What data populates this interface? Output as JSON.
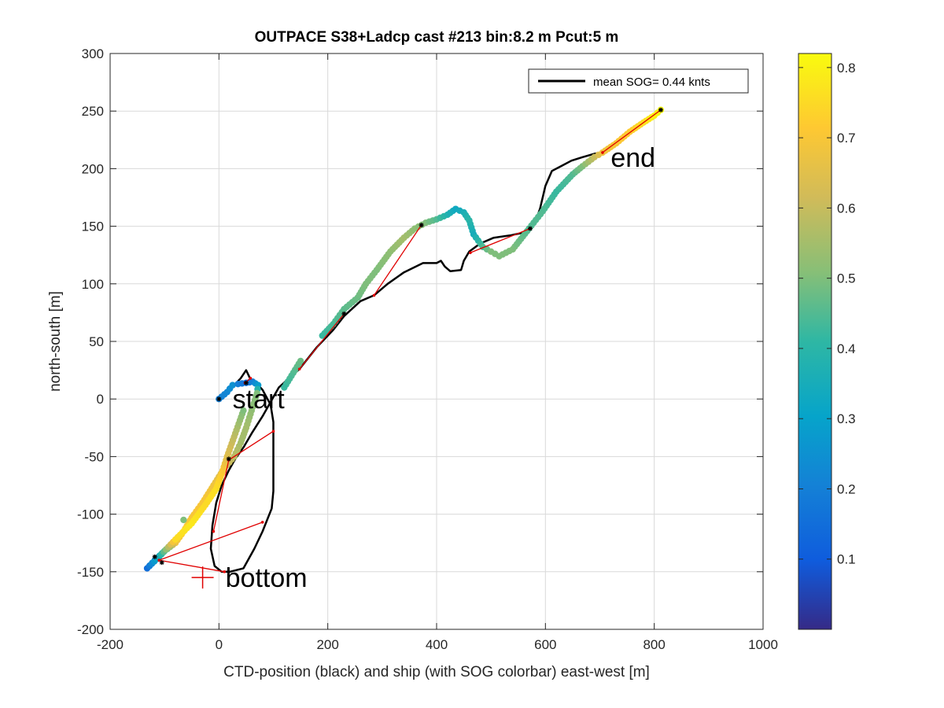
{
  "chart_data": {
    "type": "scatter",
    "title": "OUTPACE S38+Ladcp cast #213 bin:8.2 m  Pcut:5 m",
    "xlabel": "CTD-position (black) and ship (with SOG colorbar) east-west [m]",
    "ylabel": "north-south [m]",
    "xlim": [
      -200,
      1000
    ],
    "ylim": [
      -200,
      300
    ],
    "xticks": [
      -200,
      0,
      200,
      400,
      600,
      800,
      1000
    ],
    "yticks": [
      -200,
      -150,
      -100,
      -50,
      0,
      50,
      100,
      150,
      200,
      250,
      300
    ],
    "grid": true,
    "legend": {
      "label": "mean SOG=  0.44 knts",
      "location": "top-right"
    },
    "colorbar": {
      "range": [
        0.0,
        0.82
      ],
      "ticks": [
        "0.1",
        "0.2",
        "0.3",
        "0.4",
        "0.5",
        "0.6",
        "0.7",
        "0.8"
      ],
      "colormap": "parula"
    },
    "annotations": [
      {
        "text": "start",
        "x": 25,
        "y": 0
      },
      {
        "text": "end",
        "x": 720,
        "y": 210
      },
      {
        "text": "bottom",
        "x": 12,
        "y": -155
      }
    ],
    "ctd_track": [
      [
        0,
        0
      ],
      [
        20,
        8
      ],
      [
        40,
        18
      ],
      [
        50,
        25
      ],
      [
        55,
        20
      ],
      [
        60,
        15
      ],
      [
        72,
        12
      ],
      [
        80,
        8
      ],
      [
        95,
        -5
      ],
      [
        100,
        -20
      ],
      [
        100,
        -50
      ],
      [
        100,
        -80
      ],
      [
        97,
        -95
      ],
      [
        80,
        -115
      ],
      [
        65,
        -130
      ],
      [
        45,
        -147
      ],
      [
        20,
        -150
      ],
      [
        5,
        -150
      ],
      [
        -8,
        -145
      ],
      [
        -15,
        -130
      ],
      [
        -12,
        -110
      ],
      [
        -5,
        -90
      ],
      [
        5,
        -75
      ],
      [
        18,
        -62
      ],
      [
        30,
        -52
      ],
      [
        45,
        -42
      ],
      [
        60,
        -30
      ],
      [
        80,
        -15
      ],
      [
        110,
        10
      ],
      [
        148,
        26
      ],
      [
        180,
        45
      ],
      [
        210,
        60
      ],
      [
        230,
        72
      ],
      [
        260,
        85
      ],
      [
        285,
        90
      ],
      [
        310,
        100
      ],
      [
        340,
        110
      ],
      [
        375,
        118
      ],
      [
        400,
        118
      ],
      [
        408,
        120
      ],
      [
        415,
        115
      ],
      [
        425,
        111
      ],
      [
        445,
        112
      ],
      [
        450,
        120
      ],
      [
        460,
        128
      ],
      [
        480,
        135
      ],
      [
        505,
        140
      ],
      [
        535,
        142
      ],
      [
        565,
        145
      ],
      [
        578,
        150
      ],
      [
        590,
        165
      ],
      [
        600,
        185
      ],
      [
        612,
        198
      ],
      [
        628,
        202
      ],
      [
        648,
        207
      ],
      [
        668,
        210
      ],
      [
        690,
        213
      ],
      [
        705,
        214
      ]
    ],
    "ship_track": [
      {
        "x": 0,
        "y": 0,
        "v": 0.2
      },
      {
        "x": 15,
        "y": 6,
        "v": 0.22
      },
      {
        "x": 25,
        "y": 12,
        "v": 0.25
      },
      {
        "x": 35,
        "y": 13,
        "v": 0.2
      },
      {
        "x": 50,
        "y": 14,
        "v": 0.15
      },
      {
        "x": 62,
        "y": 15,
        "v": 0.2
      },
      {
        "x": 72,
        "y": 12,
        "v": 0.28
      },
      {
        "x": 70,
        "y": 5,
        "v": 0.5
      },
      {
        "x": 60,
        "y": -10,
        "v": 0.52
      },
      {
        "x": 50,
        "y": -25,
        "v": 0.55
      },
      {
        "x": 40,
        "y": -38,
        "v": 0.55
      },
      {
        "x": 28,
        "y": -50,
        "v": 0.58
      },
      {
        "x": 10,
        "y": -60,
        "v": 0.62
      },
      {
        "x": -10,
        "y": -75,
        "v": 0.68
      },
      {
        "x": -30,
        "y": -90,
        "v": 0.7
      },
      {
        "x": -50,
        "y": -103,
        "v": 0.7
      },
      {
        "x": -65,
        "y": -115,
        "v": 0.72
      },
      {
        "x": -80,
        "y": -125,
        "v": 0.68
      },
      {
        "x": -100,
        "y": -132,
        "v": 0.4
      },
      {
        "x": -118,
        "y": -140,
        "v": 0.25
      },
      {
        "x": -132,
        "y": -147,
        "v": 0.15
      },
      {
        "x": -110,
        "y": -137,
        "v": 0.35
      },
      {
        "x": -80,
        "y": -122,
        "v": 0.75
      },
      {
        "x": -50,
        "y": -108,
        "v": 0.78
      },
      {
        "x": -25,
        "y": -92,
        "v": 0.75
      },
      {
        "x": -5,
        "y": -78,
        "v": 0.76
      },
      {
        "x": 5,
        "y": -65,
        "v": 0.72
      },
      {
        "x": 15,
        "y": -50,
        "v": 0.65
      },
      {
        "x": 30,
        "y": -30,
        "v": 0.58
      },
      {
        "x": 45,
        "y": -10,
        "v": 0.5
      },
      {
        "x": -65,
        "y": -105,
        "v": 0.5
      },
      {
        "x": 150,
        "y": 33,
        "v": 0.48
      },
      {
        "x": 120,
        "y": 10,
        "v": 0.42
      },
      {
        "x": 190,
        "y": 55,
        "v": 0.42
      },
      {
        "x": 210,
        "y": 65,
        "v": 0.44
      },
      {
        "x": 230,
        "y": 78,
        "v": 0.46
      },
      {
        "x": 255,
        "y": 88,
        "v": 0.48
      },
      {
        "x": 270,
        "y": 100,
        "v": 0.5
      },
      {
        "x": 290,
        "y": 112,
        "v": 0.5
      },
      {
        "x": 315,
        "y": 128,
        "v": 0.52
      },
      {
        "x": 340,
        "y": 140,
        "v": 0.55
      },
      {
        "x": 360,
        "y": 148,
        "v": 0.52
      },
      {
        "x": 380,
        "y": 153,
        "v": 0.5
      },
      {
        "x": 400,
        "y": 156,
        "v": 0.45
      },
      {
        "x": 420,
        "y": 160,
        "v": 0.38
      },
      {
        "x": 435,
        "y": 165,
        "v": 0.33
      },
      {
        "x": 450,
        "y": 162,
        "v": 0.36
      },
      {
        "x": 460,
        "y": 155,
        "v": 0.4
      },
      {
        "x": 468,
        "y": 143,
        "v": 0.35
      },
      {
        "x": 485,
        "y": 132,
        "v": 0.45
      },
      {
        "x": 500,
        "y": 128,
        "v": 0.5
      },
      {
        "x": 515,
        "y": 124,
        "v": 0.5
      },
      {
        "x": 540,
        "y": 130,
        "v": 0.5
      },
      {
        "x": 570,
        "y": 148,
        "v": 0.45
      },
      {
        "x": 595,
        "y": 163,
        "v": 0.45
      },
      {
        "x": 620,
        "y": 180,
        "v": 0.42
      },
      {
        "x": 650,
        "y": 195,
        "v": 0.45
      },
      {
        "x": 668,
        "y": 202,
        "v": 0.5
      },
      {
        "x": 690,
        "y": 210,
        "v": 0.6
      },
      {
        "x": 705,
        "y": 214,
        "v": 0.68
      },
      {
        "x": 730,
        "y": 222,
        "v": 0.7
      },
      {
        "x": 755,
        "y": 232,
        "v": 0.72
      },
      {
        "x": 780,
        "y": 240,
        "v": 0.76
      },
      {
        "x": 800,
        "y": 246,
        "v": 0.8
      },
      {
        "x": 812,
        "y": 251,
        "v": 0.82
      }
    ],
    "red_segments": [
      [
        [
          48,
          14
        ],
        [
          58,
          18
        ]
      ],
      [
        [
          18,
          -53
        ],
        [
          100,
          -28
        ]
      ],
      [
        [
          18,
          -53
        ],
        [
          -10,
          -115
        ]
      ],
      [
        [
          -110,
          -140
        ],
        [
          80,
          -107
        ]
      ],
      [
        [
          -110,
          -140
        ],
        [
          10,
          -150
        ]
      ],
      [
        [
          148,
          26
        ],
        [
          230,
          74
        ]
      ],
      [
        [
          285,
          90
        ],
        [
          372,
          151
        ]
      ],
      [
        [
          462,
          127
        ],
        [
          572,
          148
        ]
      ],
      [
        [
          705,
          214
        ],
        [
          812,
          251
        ]
      ]
    ],
    "black_stars": [
      [
        0,
        0
      ],
      [
        50,
        14
      ],
      [
        18,
        -52
      ],
      [
        -118,
        -137
      ],
      [
        -105,
        -142
      ],
      [
        230,
        74
      ],
      [
        372,
        151
      ],
      [
        572,
        148
      ],
      [
        812,
        251
      ]
    ],
    "bottom_marker": [
      -30,
      -155
    ]
  }
}
